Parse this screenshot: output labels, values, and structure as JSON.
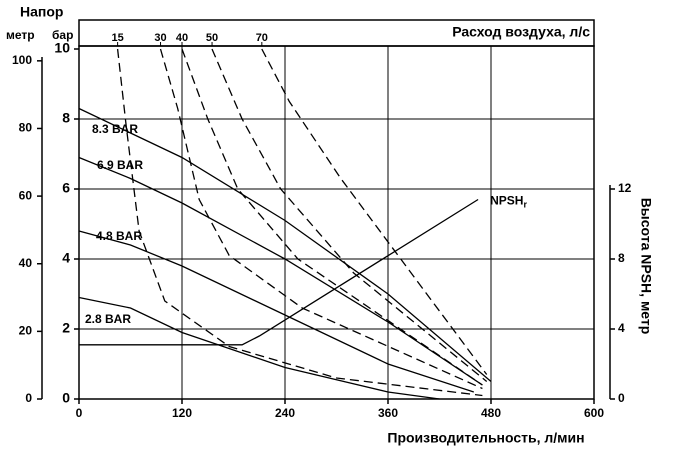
{
  "chart_data": {
    "type": "line",
    "title_left": "Напор",
    "ylabel_metre": "метр",
    "ylabel": "бар",
    "top_axis_label": "Расход воздуха, л/с",
    "xlabel": "Производительность, л/мин",
    "y2label": "Высота NPSH, метр",
    "xlim": [
      0,
      600
    ],
    "xticks": [
      0,
      120,
      240,
      360,
      480,
      600
    ],
    "ylim": [
      0,
      10
    ],
    "yticks": [
      0,
      2,
      4,
      6,
      8,
      10
    ],
    "ylim_metre": [
      0,
      103.5
    ],
    "yticks_metre": [
      0,
      20,
      40,
      60,
      80,
      100
    ],
    "y2lim": [
      0,
      20
    ],
    "y2ticks": [
      0,
      4,
      8,
      12
    ],
    "grid": true,
    "series": [
      {
        "name": "8.3 BAR",
        "color": "#000000",
        "dash": false,
        "x": [
          0,
          60,
          120,
          240,
          360,
          480
        ],
        "values": [
          8.3,
          7.6,
          6.9,
          5.1,
          3.0,
          0.5
        ]
      },
      {
        "name": "6.9 BAR",
        "color": "#000000",
        "dash": false,
        "x": [
          0,
          60,
          120,
          240,
          360,
          470
        ],
        "values": [
          6.9,
          6.3,
          5.6,
          4.0,
          2.2,
          0.4
        ]
      },
      {
        "name": "4.8 BAR",
        "color": "#000000",
        "dash": false,
        "x": [
          0,
          60,
          120,
          240,
          360,
          460
        ],
        "values": [
          4.8,
          4.4,
          3.8,
          2.4,
          1.0,
          0.2
        ]
      },
      {
        "name": "2.8 BAR",
        "color": "#000000",
        "dash": false,
        "x": [
          0,
          60,
          120,
          240,
          360,
          420
        ],
        "values": [
          2.9,
          2.6,
          1.9,
          0.9,
          0.2,
          0
        ]
      },
      {
        "name": "15",
        "color": "#000000",
        "dash": true,
        "x": [
          45,
          55,
          70,
          100,
          175,
          300,
          470
        ],
        "values": [
          10,
          7.8,
          4.8,
          2.8,
          1.5,
          0.6,
          0.1
        ]
      },
      {
        "name": "30",
        "color": "#000000",
        "dash": true,
        "x": [
          95,
          115,
          140,
          175,
          260,
          470
        ],
        "values": [
          10,
          8.3,
          5.7,
          4.1,
          2.6,
          0.3
        ]
      },
      {
        "name": "40",
        "color": "#000000",
        "dash": true,
        "x": [
          120,
          150,
          185,
          255,
          470
        ],
        "values": [
          10,
          8.0,
          6.0,
          4.0,
          0.4
        ]
      },
      {
        "name": "50",
        "color": "#000000",
        "dash": true,
        "x": [
          155,
          190,
          235,
          320,
          475
        ],
        "values": [
          10,
          8.0,
          6.0,
          3.6,
          0.5
        ]
      },
      {
        "name": "70",
        "color": "#000000",
        "dash": true,
        "x": [
          213,
          245,
          305,
          475
        ],
        "values": [
          10,
          8.5,
          6.3,
          0.7
        ]
      },
      {
        "name": "NPSH",
        "subscript": "r",
        "axis": "y2",
        "color": "#000000",
        "dash": false,
        "x": [
          0,
          190,
          210,
          465
        ],
        "values": [
          3.1,
          3.1,
          3.6,
          11.4
        ]
      }
    ]
  }
}
